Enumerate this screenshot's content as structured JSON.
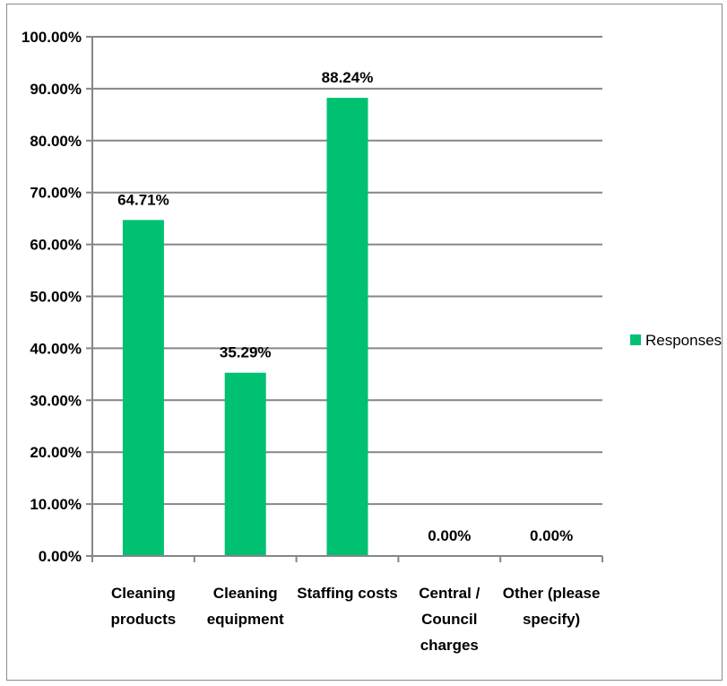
{
  "chart_data": {
    "type": "bar",
    "categories": [
      [
        "Cleaning",
        "products"
      ],
      [
        "Cleaning",
        "equipment"
      ],
      [
        "Staffing costs"
      ],
      [
        "Central /",
        "Council",
        "charges"
      ],
      [
        "Other (please",
        "specify)"
      ]
    ],
    "series": [
      {
        "name": "Responses",
        "values": [
          64.71,
          35.29,
          88.24,
          0.0,
          0.0
        ],
        "data_labels": [
          "64.71%",
          "35.29%",
          "88.24%",
          "0.00%",
          "0.00%"
        ],
        "color": "#00c071"
      }
    ],
    "ylim": [
      0,
      100
    ],
    "yticks": [
      "0.00%",
      "10.00%",
      "20.00%",
      "30.00%",
      "40.00%",
      "50.00%",
      "60.00%",
      "70.00%",
      "80.00%",
      "90.00%",
      "100.00%"
    ],
    "grid": true,
    "gridline_color": "#868686",
    "legend": {
      "placement": "right",
      "entries": [
        "Responses"
      ]
    },
    "title": "",
    "xlabel": "",
    "ylabel": ""
  }
}
